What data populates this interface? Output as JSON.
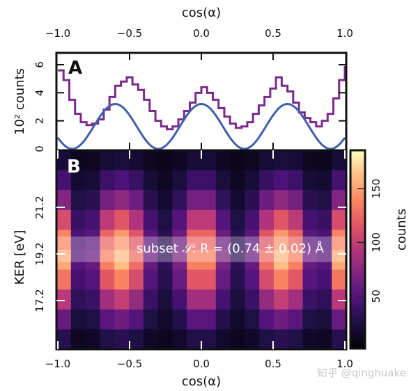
{
  "chart_data": [
    {
      "type": "line",
      "panel_label": "A",
      "xlabel": "cos(α)",
      "ylabel": "10² counts",
      "xlim": [
        -1,
        1
      ],
      "ylim": [
        0,
        6.5
      ],
      "xticks": [
        "−1.0",
        "−0.5",
        "0.0",
        "0.5",
        "1.0"
      ],
      "yticks": [
        "0",
        "2",
        "4",
        "6"
      ],
      "series": [
        {
          "style": "step",
          "color": "#7b2a8c",
          "x": [
            -1.0,
            -0.96,
            -0.92,
            -0.88,
            -0.84,
            -0.8,
            -0.76,
            -0.72,
            -0.68,
            -0.64,
            -0.6,
            -0.56,
            -0.52,
            -0.48,
            -0.44,
            -0.4,
            -0.36,
            -0.32,
            -0.28,
            -0.24,
            -0.2,
            -0.16,
            -0.12,
            -0.08,
            -0.04,
            0.0,
            0.04,
            0.08,
            0.12,
            0.16,
            0.2,
            0.24,
            0.28,
            0.32,
            0.36,
            0.4,
            0.44,
            0.48,
            0.52,
            0.56,
            0.6,
            0.64,
            0.68,
            0.72,
            0.76,
            0.8,
            0.84,
            0.88,
            0.92,
            0.96
          ],
          "y": [
            5.6,
            4.9,
            3.5,
            2.5,
            1.9,
            1.7,
            1.8,
            2.1,
            2.8,
            3.7,
            4.5,
            4.8,
            5.1,
            4.6,
            4.2,
            3.5,
            2.7,
            2.0,
            1.6,
            1.4,
            1.6,
            2.1,
            2.7,
            3.3,
            4.0,
            4.4,
            4.0,
            3.5,
            2.9,
            2.3,
            1.8,
            1.5,
            1.6,
            1.9,
            2.5,
            3.1,
            3.7,
            4.3,
            5.1,
            4.5,
            4.1,
            3.3,
            2.6,
            2.2,
            1.9,
            1.6,
            2.0,
            2.5,
            3.6,
            4.9
          ],
          "last_edge_value": 5.9
        },
        {
          "style": "line",
          "color": "#3f5faa",
          "x": [
            -1.0,
            -0.9,
            -0.8,
            -0.7,
            -0.6,
            -0.5,
            -0.4,
            -0.3,
            -0.2,
            -0.1,
            0.0,
            0.1,
            0.2,
            0.3,
            0.4,
            0.5,
            0.6,
            0.7,
            0.8,
            0.9,
            1.0
          ],
          "y": [
            0.8,
            0.0,
            0.8,
            2.4,
            3.2,
            2.4,
            0.8,
            0.0,
            0.8,
            2.4,
            3.2,
            2.4,
            0.8,
            0.0,
            0.8,
            2.4,
            3.2,
            2.4,
            0.8,
            0.0,
            0.8
          ]
        }
      ]
    },
    {
      "type": "heatmap",
      "panel_label": "B",
      "xlabel": "cos(α)",
      "ylabel": "KER [eV]",
      "xlim": [
        -1,
        1
      ],
      "ylim": [
        15.1,
        23.65
      ],
      "xticks": [
        "−1.0",
        "−0.5",
        "0.0",
        "0.5",
        "1.0"
      ],
      "yticks": [
        "17.2",
        "19.2",
        "21.2"
      ],
      "colormap": "magma",
      "colorbar": {
        "label": "counts",
        "range": [
          2,
          185
        ],
        "ticks": [
          "50",
          "100",
          "150"
        ]
      },
      "annotation": {
        "text_prefix": "subset ",
        "symbol": "𝒮",
        "text": ": R = (0.74 ± 0.02) Å",
        "band_ev": [
          18.85,
          19.95
        ]
      },
      "rows_top_to_bottom": [
        [
          22,
          12,
          13,
          21,
          23,
          20,
          13,
          11,
          14,
          21,
          21,
          14,
          11,
          13,
          20,
          23,
          21,
          13,
          12,
          22
        ],
        [
          44,
          19,
          21,
          40,
          46,
          38,
          21,
          14,
          23,
          40,
          40,
          23,
          14,
          21,
          38,
          46,
          40,
          21,
          19,
          44
        ],
        [
          73,
          27,
          31,
          65,
          77,
          62,
          31,
          19,
          35,
          65,
          65,
          35,
          19,
          31,
          62,
          77,
          65,
          31,
          27,
          73
        ],
        [
          109,
          38,
          44,
          97,
          115,
          91,
          44,
          26,
          50,
          97,
          97,
          50,
          26,
          44,
          91,
          115,
          97,
          44,
          38,
          109
        ],
        [
          138,
          46,
          54,
          123,
          146,
          115,
          54,
          31,
          62,
          123,
          123,
          62,
          31,
          54,
          115,
          146,
          123,
          54,
          46,
          138
        ],
        [
          153,
          51,
          59,
          136,
          161,
          127,
          59,
          34,
          68,
          136,
          136,
          68,
          34,
          59,
          127,
          161,
          136,
          59,
          51,
          153
        ],
        [
          131,
          44,
          51,
          116,
          138,
          109,
          51,
          30,
          59,
          116,
          116,
          59,
          30,
          51,
          109,
          138,
          116,
          51,
          44,
          131
        ],
        [
          95,
          34,
          39,
          85,
          100,
          79,
          39,
          23,
          44,
          85,
          85,
          44,
          23,
          39,
          79,
          100,
          85,
          39,
          34,
          95
        ],
        [
          59,
          23,
          26,
          53,
          62,
          50,
          26,
          17,
          29,
          53,
          53,
          29,
          17,
          26,
          50,
          62,
          53,
          26,
          23,
          59
        ],
        [
          30,
          14,
          16,
          27,
          31,
          26,
          16,
          12,
          17,
          27,
          27,
          17,
          12,
          16,
          26,
          31,
          27,
          16,
          14,
          30
        ]
      ]
    }
  ],
  "watermark": "知乎 @qinghuake"
}
